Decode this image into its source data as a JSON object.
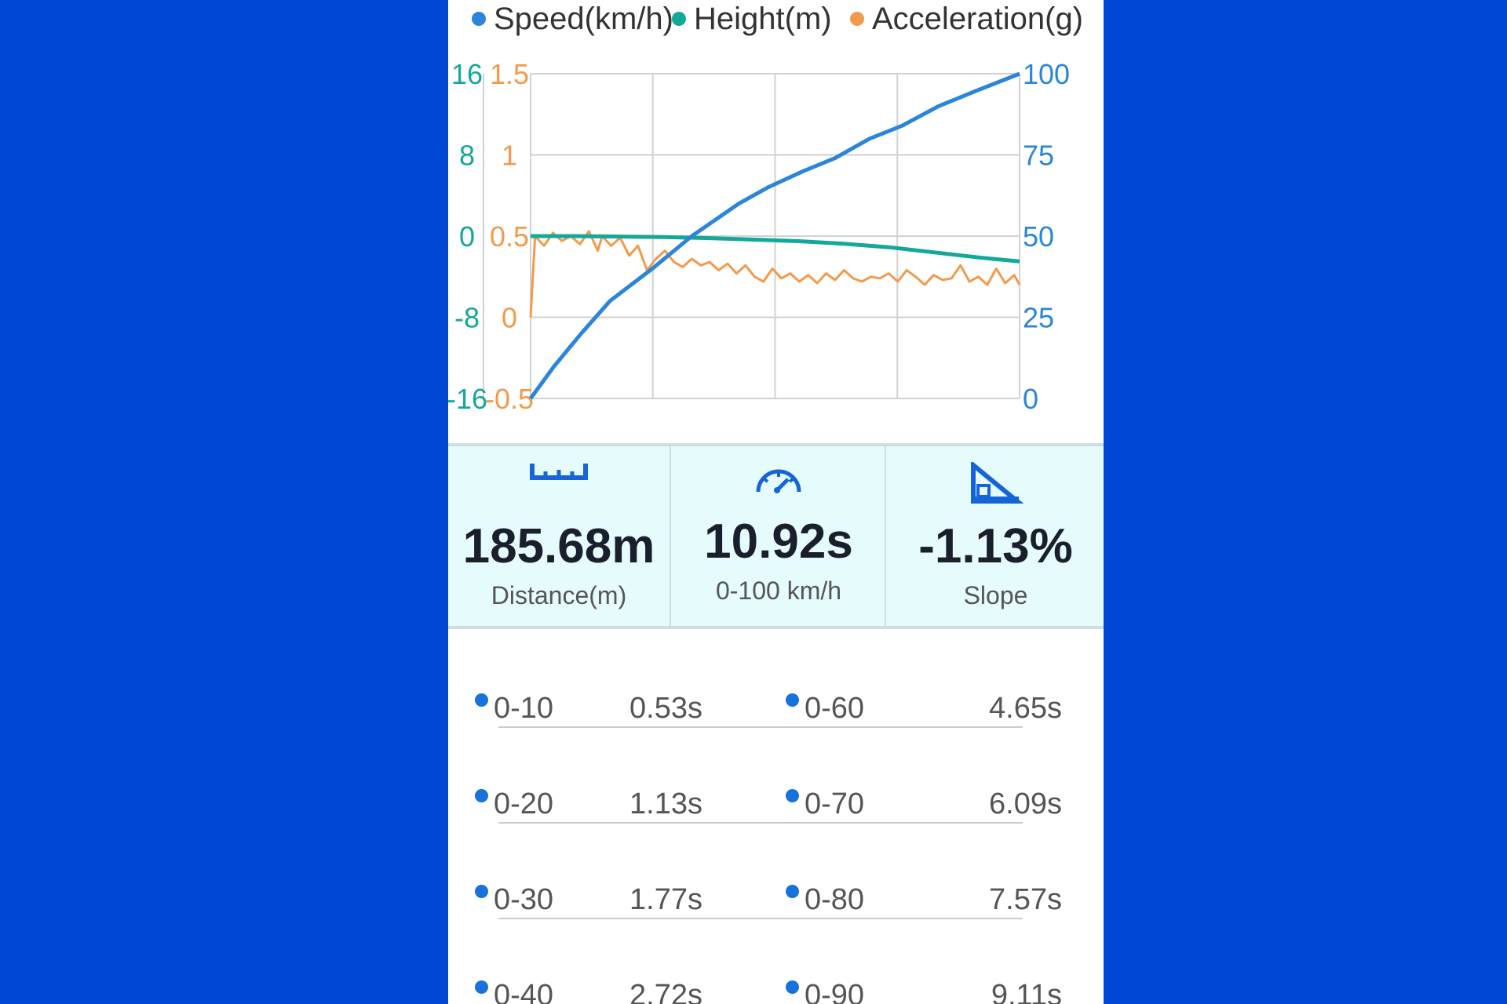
{
  "legend": [
    {
      "label": "Speed(km/h)",
      "color": "#2b86d9"
    },
    {
      "label": "Height(m)",
      "color": "#12a89a"
    },
    {
      "label": "Acceleration(g)",
      "color": "#f39a4c"
    }
  ],
  "chart_data": {
    "type": "line",
    "height_axis": {
      "ticks": [
        "16",
        "8",
        "0",
        "-8",
        "-16"
      ],
      "ylim": [
        -16,
        16
      ],
      "color": "#12a89a"
    },
    "accel_axis": {
      "ticks": [
        "1.5",
        "1",
        "0.5",
        "0",
        "-0.5"
      ],
      "ylim": [
        -0.5,
        1.5
      ],
      "color": "#f39a4c"
    },
    "speed_axis": {
      "ticks": [
        "100",
        "75",
        "50",
        "25",
        "0"
      ],
      "ylim": [
        0,
        100
      ],
      "color": "#2b86d9"
    },
    "x_range_s": [
      0,
      10.92
    ],
    "grid": true,
    "series": [
      {
        "name": "Speed(km/h)",
        "x": [
          0,
          0.53,
          1.13,
          1.77,
          2.72,
          3.6,
          4.65,
          5.3,
          6.09,
          6.8,
          7.57,
          8.3,
          9.11,
          10.0,
          10.92
        ],
        "values": [
          0,
          10,
          20,
          30,
          40,
          50,
          60,
          65,
          70,
          74,
          80,
          84,
          90,
          95,
          100
        ]
      },
      {
        "name": "Height(m)",
        "x": [
          0,
          1,
          2,
          3,
          4,
          5,
          6,
          7,
          8,
          9,
          10,
          10.92
        ],
        "values": [
          0,
          0,
          -0.05,
          -0.1,
          -0.2,
          -0.35,
          -0.5,
          -0.75,
          -1.1,
          -1.6,
          -2.1,
          -2.5
        ]
      },
      {
        "name": "Acceleration(g)",
        "x": [
          0,
          0.1,
          0.3,
          0.5,
          0.7,
          0.9,
          1.1,
          1.3,
          1.5,
          1.6,
          1.8,
          2.0,
          2.2,
          2.4,
          2.6,
          2.8,
          3.0,
          3.2,
          3.4,
          3.6,
          3.8,
          4.0,
          4.2,
          4.4,
          4.6,
          4.8,
          5.0,
          5.2,
          5.4,
          5.6,
          5.8,
          6.0,
          6.2,
          6.4,
          6.6,
          6.8,
          7.0,
          7.2,
          7.4,
          7.6,
          7.8,
          8.0,
          8.2,
          8.4,
          8.6,
          8.8,
          9.0,
          9.2,
          9.4,
          9.6,
          9.8,
          10.0,
          10.2,
          10.4,
          10.6,
          10.8,
          10.92
        ],
        "values": [
          0.0,
          0.5,
          0.44,
          0.52,
          0.47,
          0.5,
          0.45,
          0.53,
          0.41,
          0.5,
          0.44,
          0.49,
          0.38,
          0.44,
          0.29,
          0.36,
          0.41,
          0.34,
          0.31,
          0.36,
          0.32,
          0.34,
          0.29,
          0.33,
          0.27,
          0.32,
          0.25,
          0.22,
          0.3,
          0.24,
          0.27,
          0.22,
          0.26,
          0.21,
          0.27,
          0.23,
          0.29,
          0.24,
          0.22,
          0.25,
          0.24,
          0.27,
          0.22,
          0.29,
          0.25,
          0.2,
          0.26,
          0.23,
          0.24,
          0.32,
          0.22,
          0.25,
          0.2,
          0.3,
          0.21,
          0.26,
          0.2
        ]
      }
    ]
  },
  "stats": [
    {
      "icon": "ruler-icon",
      "value": "185.68m",
      "label": "Distance(m)"
    },
    {
      "icon": "speedometer-icon",
      "value": "10.92s",
      "label": "0-100 km/h"
    },
    {
      "icon": "slope-icon",
      "value": "-1.13%",
      "label": "Slope"
    }
  ],
  "times": [
    {
      "left": {
        "label": "0-10",
        "value": "0.53s"
      },
      "right": {
        "label": "0-60",
        "value": "4.65s"
      }
    },
    {
      "left": {
        "label": "0-20",
        "value": "1.13s"
      },
      "right": {
        "label": "0-70",
        "value": "6.09s"
      }
    },
    {
      "left": {
        "label": "0-30",
        "value": "1.77s"
      },
      "right": {
        "label": "0-80",
        "value": "7.57s"
      }
    },
    {
      "left": {
        "label": "0-40",
        "value": "2.72s"
      },
      "right": {
        "label": "0-90",
        "value": "9.11s"
      }
    }
  ],
  "colors": {
    "background": "#0047d6",
    "stats_panel": "#e6fbfc",
    "bullet": "#1772dc",
    "icon": "#1565d8"
  }
}
